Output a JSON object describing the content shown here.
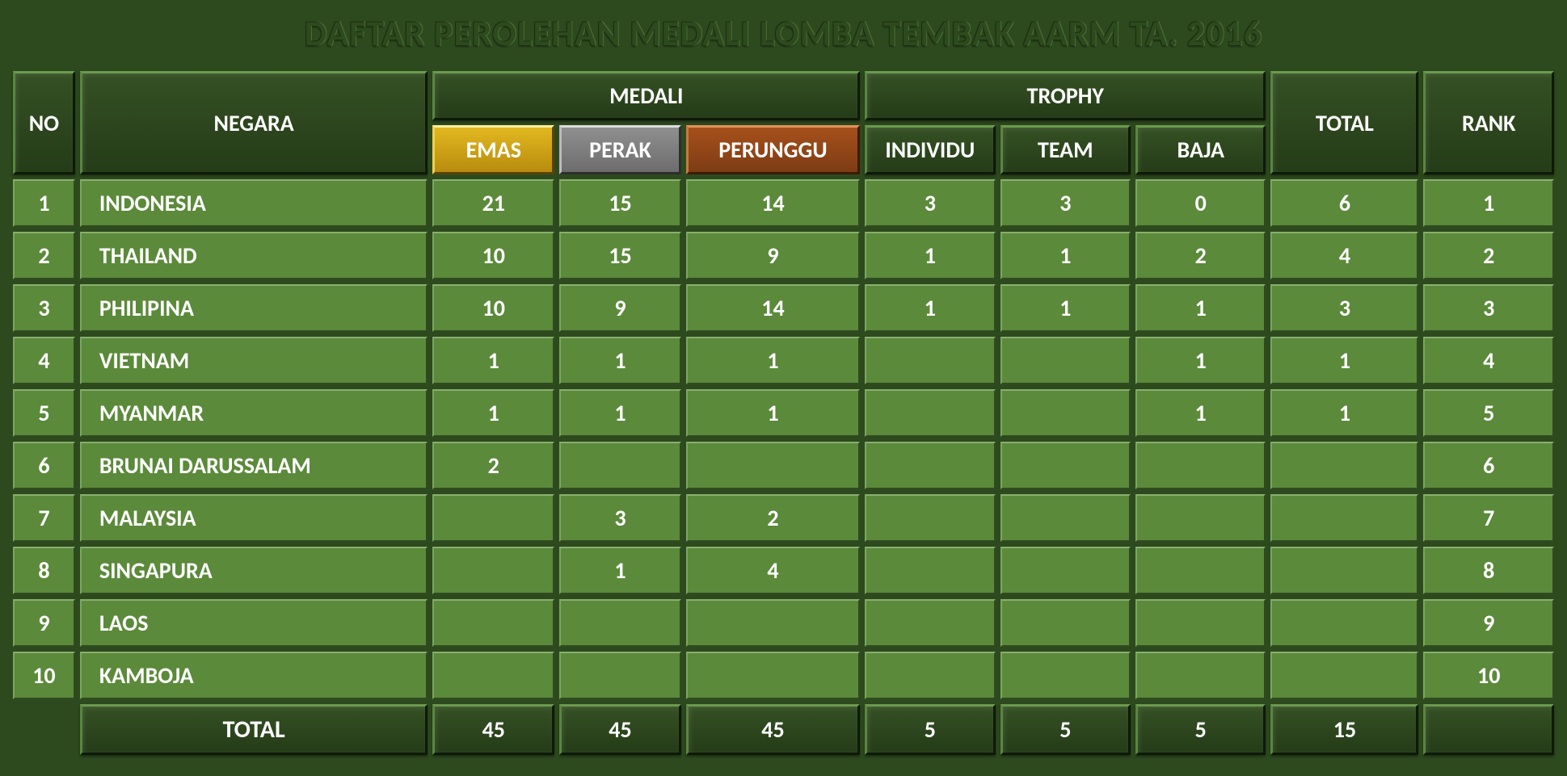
{
  "title": "DAFTAR PEROLEHAN MEDALI LOMBA TEMBAK AARM TA. 2016",
  "columns": {
    "no": "NO",
    "negara": "NEGARA",
    "medali": "MEDALI",
    "emas": "EMAS",
    "perak": "PERAK",
    "perunggu": "PERUNGGU",
    "trophy": "TROPHY",
    "individu": "INDIVIDU",
    "team": "TEAM",
    "baja": "BAJA",
    "total": "TOTAL",
    "rank": "RANK"
  },
  "rows": [
    {
      "no": "1",
      "negara": "INDONESIA",
      "emas": "21",
      "perak": "15",
      "perunggu": "14",
      "individu": "3",
      "team": "3",
      "baja": "0",
      "total": "6",
      "rank": "1"
    },
    {
      "no": "2",
      "negara": "THAILAND",
      "emas": "10",
      "perak": "15",
      "perunggu": "9",
      "individu": "1",
      "team": "1",
      "baja": "2",
      "total": "4",
      "rank": "2"
    },
    {
      "no": "3",
      "negara": "PHILIPINA",
      "emas": "10",
      "perak": "9",
      "perunggu": "14",
      "individu": "1",
      "team": "1",
      "baja": "1",
      "total": "3",
      "rank": "3"
    },
    {
      "no": "4",
      "negara": "VIETNAM",
      "emas": "1",
      "perak": "1",
      "perunggu": "1",
      "individu": "",
      "team": "",
      "baja": "1",
      "total": "1",
      "rank": "4"
    },
    {
      "no": "5",
      "negara": "MYANMAR",
      "emas": "1",
      "perak": "1",
      "perunggu": "1",
      "individu": "",
      "team": "",
      "baja": "1",
      "total": "1",
      "rank": "5"
    },
    {
      "no": "6",
      "negara": "BRUNAI DARUSSALAM",
      "emas": "2",
      "perak": "",
      "perunggu": "",
      "individu": "",
      "team": "",
      "baja": "",
      "total": "",
      "rank": "6"
    },
    {
      "no": "7",
      "negara": "MALAYSIA",
      "emas": "",
      "perak": "3",
      "perunggu": "2",
      "individu": "",
      "team": "",
      "baja": "",
      "total": "",
      "rank": "7"
    },
    {
      "no": "8",
      "negara": "SINGAPURA",
      "emas": "",
      "perak": "1",
      "perunggu": "4",
      "individu": "",
      "team": "",
      "baja": "",
      "total": "",
      "rank": "8"
    },
    {
      "no": "9",
      "negara": "LAOS",
      "emas": "",
      "perak": "",
      "perunggu": "",
      "individu": "",
      "team": "",
      "baja": "",
      "total": "",
      "rank": "9"
    },
    {
      "no": "10",
      "negara": "KAMBOJA",
      "emas": "",
      "perak": "",
      "perunggu": "",
      "individu": "",
      "team": "",
      "baja": "",
      "total": "",
      "rank": "10"
    }
  ],
  "totals": {
    "label": "TOTAL",
    "emas": "45",
    "perak": "45",
    "perunggu": "45",
    "individu": "5",
    "team": "5",
    "baja": "5",
    "total": "15",
    "rank": ""
  },
  "styling": {
    "background_color": "#2d4a1e",
    "header_dark_bg": "#2f4a20",
    "cell_bg": "#5b8a3a",
    "text_color": "#ffffff",
    "gold": "#c9a014",
    "silver": "#7d7d7d",
    "bronze": "#8f4516",
    "title_fontsize": 44,
    "cell_fontsize": 28,
    "border_spacing": 6,
    "col_widths": {
      "no": 70,
      "negara": 400,
      "medal": 140,
      "perunggu": 200,
      "trophy": 150,
      "total": 170,
      "rank": 150
    }
  }
}
